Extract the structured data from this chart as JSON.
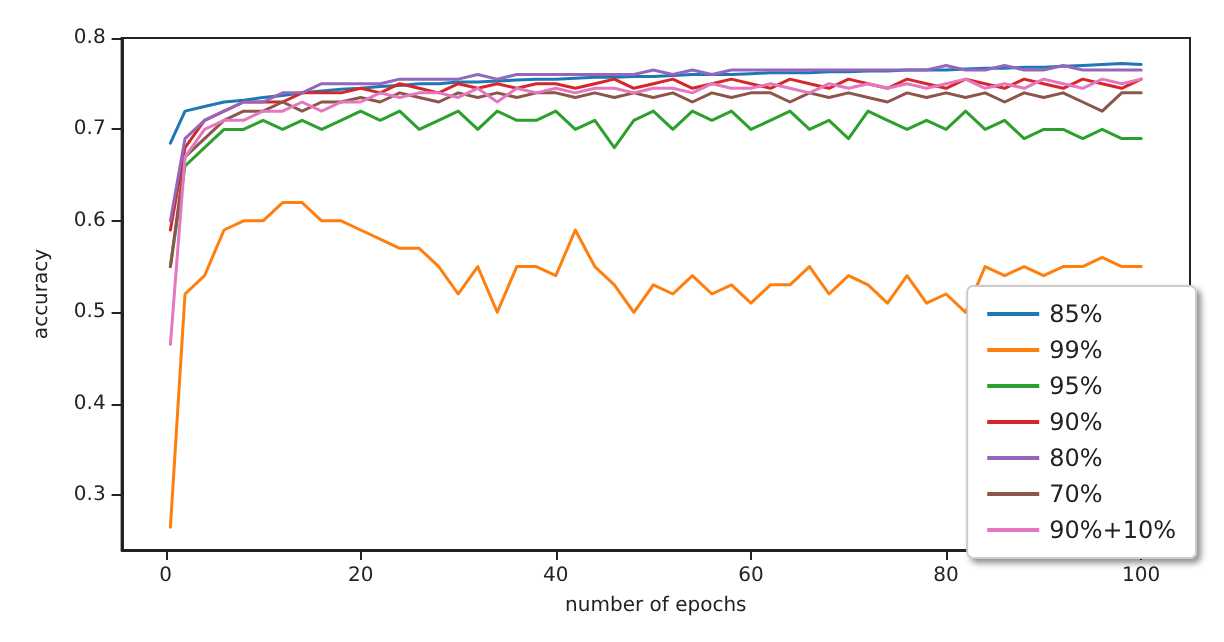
{
  "chart_data": {
    "type": "line",
    "xlabel": "number of epochs",
    "ylabel": "accuracy",
    "x": [
      0.5,
      2,
      4,
      6,
      8,
      10,
      12,
      14,
      16,
      18,
      20,
      22,
      24,
      26,
      28,
      30,
      32,
      34,
      36,
      38,
      40,
      42,
      44,
      46,
      48,
      50,
      52,
      54,
      56,
      58,
      60,
      62,
      64,
      66,
      68,
      70,
      72,
      74,
      76,
      78,
      80,
      82,
      84,
      86,
      88,
      90,
      92,
      94,
      96,
      98,
      100
    ],
    "xlim": [
      -4.5,
      105
    ],
    "xticks": [
      0,
      20,
      40,
      60,
      80,
      100
    ],
    "ylim": [
      0.24,
      0.8
    ],
    "yticks": [
      0.3,
      0.4,
      0.5,
      0.6,
      0.7,
      0.8
    ],
    "grid": false,
    "legend": "bottom right",
    "marker": "none",
    "line_style": "solid",
    "series": [
      {
        "name": "85%",
        "color": "#1f77b4",
        "values": [
          0.685,
          0.72,
          0.725,
          0.73,
          0.732,
          0.735,
          0.737,
          0.74,
          0.742,
          0.744,
          0.745,
          0.747,
          0.748,
          0.75,
          0.75,
          0.752,
          0.752,
          0.753,
          0.754,
          0.755,
          0.755,
          0.756,
          0.757,
          0.757,
          0.758,
          0.758,
          0.759,
          0.76,
          0.76,
          0.76,
          0.761,
          0.762,
          0.762,
          0.762,
          0.763,
          0.763,
          0.764,
          0.764,
          0.765,
          0.765,
          0.765,
          0.766,
          0.767,
          0.767,
          0.768,
          0.768,
          0.769,
          0.77,
          0.771,
          0.772,
          0.771
        ]
      },
      {
        "name": "99%",
        "color": "#ff7f0e",
        "values": [
          0.265,
          0.52,
          0.54,
          0.59,
          0.6,
          0.6,
          0.62,
          0.62,
          0.6,
          0.6,
          0.59,
          0.58,
          0.57,
          0.57,
          0.55,
          0.52,
          0.55,
          0.5,
          0.55,
          0.55,
          0.54,
          0.59,
          0.55,
          0.53,
          0.5,
          0.53,
          0.52,
          0.54,
          0.52,
          0.53,
          0.51,
          0.53,
          0.53,
          0.55,
          0.52,
          0.54,
          0.53,
          0.51,
          0.54,
          0.51,
          0.52,
          0.5,
          0.55,
          0.54,
          0.55,
          0.54,
          0.55,
          0.55,
          0.56,
          0.55,
          0.55
        ]
      },
      {
        "name": "95%",
        "color": "#2ca02c",
        "values": [
          0.55,
          0.66,
          0.68,
          0.7,
          0.7,
          0.71,
          0.7,
          0.71,
          0.7,
          0.71,
          0.72,
          0.71,
          0.72,
          0.7,
          0.71,
          0.72,
          0.7,
          0.72,
          0.71,
          0.71,
          0.72,
          0.7,
          0.71,
          0.68,
          0.71,
          0.72,
          0.7,
          0.72,
          0.71,
          0.72,
          0.7,
          0.71,
          0.72,
          0.7,
          0.71,
          0.69,
          0.72,
          0.71,
          0.7,
          0.71,
          0.7,
          0.72,
          0.7,
          0.71,
          0.69,
          0.7,
          0.7,
          0.69,
          0.7,
          0.69,
          0.69
        ]
      },
      {
        "name": "90%",
        "color": "#d62728",
        "values": [
          0.59,
          0.68,
          0.71,
          0.72,
          0.73,
          0.73,
          0.73,
          0.74,
          0.74,
          0.74,
          0.745,
          0.74,
          0.75,
          0.745,
          0.74,
          0.75,
          0.745,
          0.75,
          0.745,
          0.75,
          0.75,
          0.745,
          0.75,
          0.755,
          0.745,
          0.75,
          0.755,
          0.745,
          0.75,
          0.755,
          0.75,
          0.745,
          0.755,
          0.75,
          0.745,
          0.755,
          0.75,
          0.745,
          0.755,
          0.75,
          0.745,
          0.755,
          0.75,
          0.745,
          0.755,
          0.75,
          0.745,
          0.755,
          0.75,
          0.745,
          0.755
        ]
      },
      {
        "name": "80%",
        "color": "#9467bd",
        "values": [
          0.6,
          0.69,
          0.71,
          0.72,
          0.73,
          0.73,
          0.74,
          0.74,
          0.75,
          0.75,
          0.75,
          0.75,
          0.755,
          0.755,
          0.755,
          0.755,
          0.76,
          0.755,
          0.76,
          0.76,
          0.76,
          0.76,
          0.76,
          0.76,
          0.76,
          0.765,
          0.76,
          0.765,
          0.76,
          0.765,
          0.765,
          0.765,
          0.765,
          0.765,
          0.765,
          0.765,
          0.765,
          0.765,
          0.765,
          0.765,
          0.77,
          0.765,
          0.765,
          0.77,
          0.765,
          0.765,
          0.77,
          0.765,
          0.765,
          0.765,
          0.765
        ]
      },
      {
        "name": "70%",
        "color": "#8c564b",
        "values": [
          0.55,
          0.67,
          0.69,
          0.71,
          0.72,
          0.72,
          0.73,
          0.72,
          0.73,
          0.73,
          0.735,
          0.73,
          0.74,
          0.735,
          0.73,
          0.74,
          0.735,
          0.74,
          0.735,
          0.74,
          0.74,
          0.735,
          0.74,
          0.735,
          0.74,
          0.735,
          0.74,
          0.73,
          0.74,
          0.735,
          0.74,
          0.74,
          0.73,
          0.74,
          0.735,
          0.74,
          0.735,
          0.73,
          0.74,
          0.735,
          0.74,
          0.735,
          0.74,
          0.73,
          0.74,
          0.735,
          0.74,
          0.73,
          0.72,
          0.74,
          0.74
        ]
      },
      {
        "name": "90%+10%",
        "color": "#e377c2",
        "values": [
          0.465,
          0.67,
          0.7,
          0.71,
          0.71,
          0.72,
          0.72,
          0.73,
          0.72,
          0.73,
          0.73,
          0.74,
          0.735,
          0.74,
          0.74,
          0.735,
          0.745,
          0.73,
          0.745,
          0.74,
          0.745,
          0.74,
          0.745,
          0.745,
          0.74,
          0.745,
          0.745,
          0.74,
          0.75,
          0.745,
          0.745,
          0.75,
          0.745,
          0.74,
          0.75,
          0.745,
          0.75,
          0.745,
          0.75,
          0.745,
          0.75,
          0.755,
          0.745,
          0.75,
          0.745,
          0.755,
          0.75,
          0.745,
          0.755,
          0.75,
          0.755
        ]
      }
    ]
  }
}
